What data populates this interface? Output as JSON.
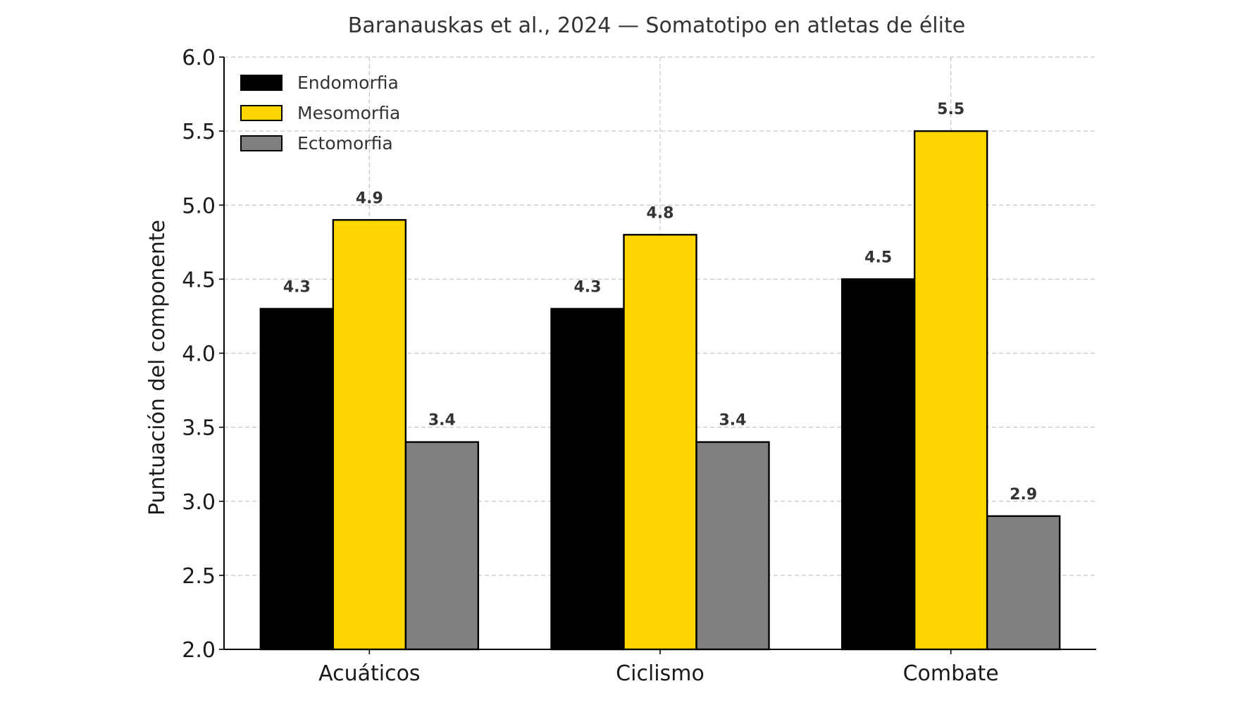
{
  "chart_data": {
    "type": "bar",
    "title": "Baranauskas et al., 2024 — Somatotipo en atletas de élite",
    "xlabel": "",
    "ylabel": "Puntuación del componente",
    "ylim": [
      2.0,
      6.0
    ],
    "yticks": [
      "2.0",
      "2.5",
      "3.0",
      "3.5",
      "4.0",
      "4.5",
      "5.0",
      "5.5",
      "6.0"
    ],
    "categories": [
      "Acuáticos",
      "Ciclismo",
      "Combate"
    ],
    "series": [
      {
        "name": "Endomorfia",
        "values": [
          4.3,
          4.3,
          4.5
        ],
        "color": "#000000"
      },
      {
        "name": "Mesomorfia",
        "values": [
          4.9,
          4.8,
          5.5
        ],
        "color": "#FFD700"
      },
      {
        "name": "Ectomorfia",
        "values": [
          3.4,
          3.4,
          2.9
        ],
        "color": "#808080"
      }
    ],
    "grid": true,
    "legend_position": "top-left"
  }
}
